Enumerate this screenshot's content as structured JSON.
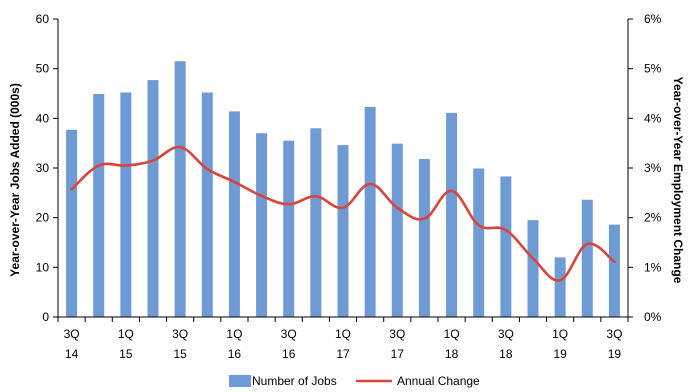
{
  "chart_data": {
    "type": "bar",
    "x_labels": [
      {
        "line1": "3Q",
        "line2": "14"
      },
      {
        "line1": "1Q",
        "line2": "15"
      },
      {
        "line1": "3Q",
        "line2": "15"
      },
      {
        "line1": "1Q",
        "line2": "16"
      },
      {
        "line1": "3Q",
        "line2": "16"
      },
      {
        "line1": "1Q",
        "line2": "17"
      },
      {
        "line1": "3Q",
        "line2": "17"
      },
      {
        "line1": "1Q",
        "line2": "18"
      },
      {
        "line1": "3Q",
        "line2": "18"
      },
      {
        "line1": "1Q",
        "line2": "19"
      },
      {
        "line1": "3Q",
        "line2": "19"
      }
    ],
    "series": [
      {
        "name": "Number of Jobs",
        "type": "bar",
        "axis": "left",
        "color": "#6f9bd4",
        "values": [
          37.7,
          44.9,
          45.2,
          47.7,
          51.5,
          45.2,
          41.4,
          37.0,
          35.5,
          38.0,
          34.6,
          42.3,
          34.9,
          31.8,
          41.1,
          29.9,
          28.3,
          19.5,
          12.0,
          23.6,
          18.6
        ]
      },
      {
        "name": "Annual Change",
        "type": "line",
        "axis": "right",
        "color": "#d9443c",
        "values": [
          2.57,
          3.05,
          3.05,
          3.15,
          3.42,
          2.98,
          2.72,
          2.44,
          2.27,
          2.43,
          2.2,
          2.68,
          2.2,
          1.98,
          2.54,
          1.85,
          1.75,
          1.18,
          0.74,
          1.47,
          1.11
        ]
      }
    ],
    "y_left": {
      "label": "Year-over-Year Jobs Added (000s)",
      "min": 0,
      "max": 60,
      "ticks": [
        "0",
        "10",
        "20",
        "30",
        "40",
        "50",
        "60"
      ]
    },
    "y_right": {
      "label": "Year-over-Year Employment Change",
      "min": 0,
      "max": 6,
      "ticks": [
        "0%",
        "1%",
        "2%",
        "3%",
        "4%",
        "5%",
        "6%"
      ]
    },
    "legend": {
      "position": "bottom"
    }
  }
}
